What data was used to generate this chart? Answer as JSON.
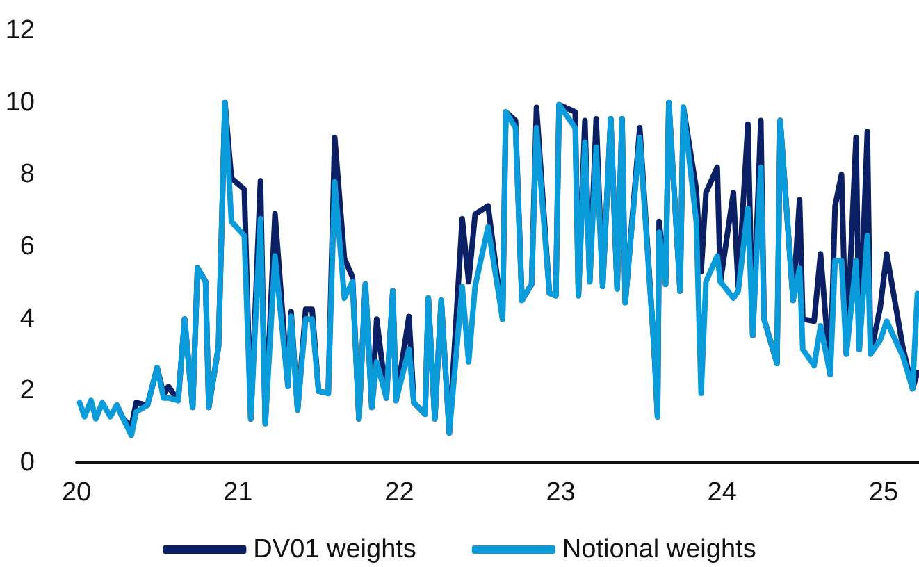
{
  "chart_data": {
    "type": "line",
    "x": [
      20.02,
      20.05,
      20.09,
      20.12,
      20.16,
      20.21,
      20.25,
      20.29,
      20.34,
      20.37,
      20.44,
      20.5,
      20.54,
      20.57,
      20.63,
      20.67,
      20.72,
      20.75,
      20.8,
      20.82,
      20.88,
      20.92,
      20.96,
      21.04,
      21.08,
      21.14,
      21.17,
      21.23,
      21.31,
      21.33,
      21.37,
      21.42,
      21.46,
      21.5,
      21.56,
      21.6,
      21.66,
      21.71,
      21.75,
      21.79,
      21.83,
      21.86,
      21.92,
      21.96,
      21.98,
      22.06,
      22.09,
      22.16,
      22.18,
      22.22,
      22.26,
      22.31,
      22.39,
      22.43,
      22.47,
      22.55,
      22.64,
      22.66,
      22.72,
      22.76,
      22.82,
      22.85,
      22.93,
      22.97,
      22.99,
      23.09,
      23.11,
      23.15,
      23.18,
      23.22,
      23.26,
      23.31,
      23.35,
      23.38,
      23.4,
      23.49,
      23.58,
      23.6,
      23.61,
      23.65,
      23.67,
      23.74,
      23.76,
      23.84,
      23.87,
      23.9,
      23.97,
      23.99,
      24.07,
      24.1,
      24.16,
      24.19,
      24.24,
      24.26,
      24.34,
      24.36,
      24.44,
      24.48,
      24.5,
      24.57,
      24.61,
      24.67,
      24.7,
      24.74,
      24.77,
      24.83,
      24.85,
      24.9,
      24.92,
      24.98,
      25.02,
      25.12,
      25.18,
      25.21
    ],
    "series": [
      {
        "name": "DV01 weights",
        "color": "#0b1f65",
        "values": [
          null,
          null,
          null,
          null,
          null,
          null,
          1.6,
          1.22,
          1.0,
          1.67,
          1.6,
          2.64,
          1.9,
          2.12,
          1.73,
          3.99,
          1.54,
          5.41,
          5.03,
          1.54,
          3.22,
          10.0,
          7.9,
          7.59,
          1.22,
          7.83,
          1.09,
          6.91,
          2.18,
          4.19,
          1.47,
          4.26,
          4.26,
          1.99,
          1.93,
          9.03,
          5.67,
          5.16,
          1.22,
          4.96,
          1.54,
          3.99,
          1.8,
          4.77,
          1.73,
          4.06,
          1.67,
          1.35,
          4.57,
          1.22,
          4.51,
          0.83,
          6.77,
          5.03,
          6.9,
          7.13,
          3.99,
          9.74,
          9.5,
          4.51,
          4.96,
          9.87,
          4.71,
          4.64,
          9.94,
          9.74,
          4.64,
          9.5,
          5.03,
          9.55,
          4.9,
          9.55,
          4.83,
          9.55,
          4.45,
          9.3,
          3.09,
          1.28,
          6.7,
          4.96,
          10.0,
          4.77,
          9.87,
          7.6,
          5.3,
          7.5,
          8.2,
          5.03,
          7.5,
          4.9,
          9.4,
          3.54,
          9.5,
          3.99,
          2.76,
          9.5,
          4.51,
          7.3,
          3.99,
          3.93,
          5.8,
          2.45,
          7.13,
          8.0,
          3.02,
          9.03,
          3.15,
          9.2,
          3.02,
          4.32,
          5.8,
          3.2,
          2.06,
          2.5
        ]
      },
      {
        "name": "Notional weights",
        "color": "#0a9bdb",
        "values": [
          1.67,
          1.28,
          1.73,
          1.22,
          1.67,
          1.28,
          1.6,
          1.22,
          0.76,
          1.41,
          1.6,
          2.64,
          1.8,
          1.8,
          1.73,
          3.99,
          1.54,
          5.41,
          5.03,
          1.54,
          3.22,
          10.0,
          6.7,
          6.3,
          1.22,
          6.77,
          1.09,
          5.74,
          2.12,
          4.06,
          1.47,
          3.99,
          3.99,
          1.99,
          1.93,
          7.8,
          4.57,
          5.03,
          1.22,
          4.96,
          1.54,
          2.8,
          1.8,
          4.77,
          1.73,
          3.15,
          1.67,
          1.35,
          4.57,
          1.22,
          4.51,
          0.83,
          4.89,
          2.8,
          4.9,
          6.55,
          3.99,
          9.74,
          9.3,
          4.51,
          4.96,
          9.3,
          4.71,
          4.64,
          9.94,
          9.3,
          4.64,
          8.9,
          5.03,
          8.77,
          4.9,
          9.55,
          4.83,
          9.55,
          4.45,
          9.03,
          3.09,
          1.28,
          6.4,
          4.96,
          10.0,
          4.77,
          9.87,
          6.7,
          1.93,
          5.03,
          5.74,
          5.03,
          4.57,
          4.77,
          7.06,
          3.54,
          8.2,
          3.99,
          2.76,
          9.5,
          4.51,
          5.4,
          3.15,
          2.7,
          3.8,
          2.45,
          5.61,
          5.61,
          3.02,
          5.61,
          3.15,
          6.3,
          3.02,
          3.41,
          3.93,
          2.96,
          2.06,
          4.7
        ]
      }
    ],
    "xlim": [
      20,
      25.22
    ],
    "xticks": [
      20,
      21,
      22,
      23,
      24,
      25
    ],
    "ylim": [
      0,
      12
    ],
    "yticks": [
      0,
      2,
      4,
      6,
      8,
      10,
      12
    ],
    "grid": false,
    "legend": "bottom",
    "marker": "none",
    "line_style": "solid"
  }
}
